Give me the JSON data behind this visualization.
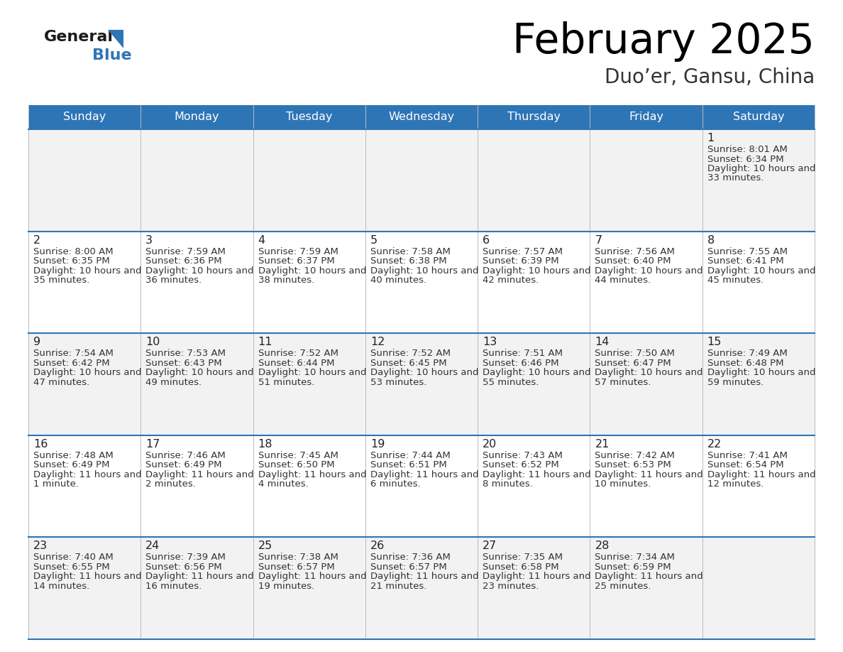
{
  "title": "February 2025",
  "subtitle": "Duo’er, Gansu, China",
  "header_bg": "#2e75b6",
  "header_text": "#ffffff",
  "row_bg_odd": "#f2f2f2",
  "row_bg_even": "#ffffff",
  "text_color": "#333333",
  "day_number_color": "#222222",
  "separator_color": "#2e75b6",
  "cell_border_color": "#cccccc",
  "day_headers": [
    "Sunday",
    "Monday",
    "Tuesday",
    "Wednesday",
    "Thursday",
    "Friday",
    "Saturday"
  ],
  "days": [
    {
      "day": 1,
      "col": 6,
      "row": 0,
      "sunrise": "8:01 AM",
      "sunset": "6:34 PM",
      "daylight": "10 hours and 33 minutes."
    },
    {
      "day": 2,
      "col": 0,
      "row": 1,
      "sunrise": "8:00 AM",
      "sunset": "6:35 PM",
      "daylight": "10 hours and 35 minutes."
    },
    {
      "day": 3,
      "col": 1,
      "row": 1,
      "sunrise": "7:59 AM",
      "sunset": "6:36 PM",
      "daylight": "10 hours and 36 minutes."
    },
    {
      "day": 4,
      "col": 2,
      "row": 1,
      "sunrise": "7:59 AM",
      "sunset": "6:37 PM",
      "daylight": "10 hours and 38 minutes."
    },
    {
      "day": 5,
      "col": 3,
      "row": 1,
      "sunrise": "7:58 AM",
      "sunset": "6:38 PM",
      "daylight": "10 hours and 40 minutes."
    },
    {
      "day": 6,
      "col": 4,
      "row": 1,
      "sunrise": "7:57 AM",
      "sunset": "6:39 PM",
      "daylight": "10 hours and 42 minutes."
    },
    {
      "day": 7,
      "col": 5,
      "row": 1,
      "sunrise": "7:56 AM",
      "sunset": "6:40 PM",
      "daylight": "10 hours and 44 minutes."
    },
    {
      "day": 8,
      "col": 6,
      "row": 1,
      "sunrise": "7:55 AM",
      "sunset": "6:41 PM",
      "daylight": "10 hours and 45 minutes."
    },
    {
      "day": 9,
      "col": 0,
      "row": 2,
      "sunrise": "7:54 AM",
      "sunset": "6:42 PM",
      "daylight": "10 hours and 47 minutes."
    },
    {
      "day": 10,
      "col": 1,
      "row": 2,
      "sunrise": "7:53 AM",
      "sunset": "6:43 PM",
      "daylight": "10 hours and 49 minutes."
    },
    {
      "day": 11,
      "col": 2,
      "row": 2,
      "sunrise": "7:52 AM",
      "sunset": "6:44 PM",
      "daylight": "10 hours and 51 minutes."
    },
    {
      "day": 12,
      "col": 3,
      "row": 2,
      "sunrise": "7:52 AM",
      "sunset": "6:45 PM",
      "daylight": "10 hours and 53 minutes."
    },
    {
      "day": 13,
      "col": 4,
      "row": 2,
      "sunrise": "7:51 AM",
      "sunset": "6:46 PM",
      "daylight": "10 hours and 55 minutes."
    },
    {
      "day": 14,
      "col": 5,
      "row": 2,
      "sunrise": "7:50 AM",
      "sunset": "6:47 PM",
      "daylight": "10 hours and 57 minutes."
    },
    {
      "day": 15,
      "col": 6,
      "row": 2,
      "sunrise": "7:49 AM",
      "sunset": "6:48 PM",
      "daylight": "10 hours and 59 minutes."
    },
    {
      "day": 16,
      "col": 0,
      "row": 3,
      "sunrise": "7:48 AM",
      "sunset": "6:49 PM",
      "daylight": "11 hours and 1 minute."
    },
    {
      "day": 17,
      "col": 1,
      "row": 3,
      "sunrise": "7:46 AM",
      "sunset": "6:49 PM",
      "daylight": "11 hours and 2 minutes."
    },
    {
      "day": 18,
      "col": 2,
      "row": 3,
      "sunrise": "7:45 AM",
      "sunset": "6:50 PM",
      "daylight": "11 hours and 4 minutes."
    },
    {
      "day": 19,
      "col": 3,
      "row": 3,
      "sunrise": "7:44 AM",
      "sunset": "6:51 PM",
      "daylight": "11 hours and 6 minutes."
    },
    {
      "day": 20,
      "col": 4,
      "row": 3,
      "sunrise": "7:43 AM",
      "sunset": "6:52 PM",
      "daylight": "11 hours and 8 minutes."
    },
    {
      "day": 21,
      "col": 5,
      "row": 3,
      "sunrise": "7:42 AM",
      "sunset": "6:53 PM",
      "daylight": "11 hours and 10 minutes."
    },
    {
      "day": 22,
      "col": 6,
      "row": 3,
      "sunrise": "7:41 AM",
      "sunset": "6:54 PM",
      "daylight": "11 hours and 12 minutes."
    },
    {
      "day": 23,
      "col": 0,
      "row": 4,
      "sunrise": "7:40 AM",
      "sunset": "6:55 PM",
      "daylight": "11 hours and 14 minutes."
    },
    {
      "day": 24,
      "col": 1,
      "row": 4,
      "sunrise": "7:39 AM",
      "sunset": "6:56 PM",
      "daylight": "11 hours and 16 minutes."
    },
    {
      "day": 25,
      "col": 2,
      "row": 4,
      "sunrise": "7:38 AM",
      "sunset": "6:57 PM",
      "daylight": "11 hours and 19 minutes."
    },
    {
      "day": 26,
      "col": 3,
      "row": 4,
      "sunrise": "7:36 AM",
      "sunset": "6:57 PM",
      "daylight": "11 hours and 21 minutes."
    },
    {
      "day": 27,
      "col": 4,
      "row": 4,
      "sunrise": "7:35 AM",
      "sunset": "6:58 PM",
      "daylight": "11 hours and 23 minutes."
    },
    {
      "day": 28,
      "col": 5,
      "row": 4,
      "sunrise": "7:34 AM",
      "sunset": "6:59 PM",
      "daylight": "11 hours and 25 minutes."
    }
  ],
  "figsize": [
    11.88,
    9.18
  ],
  "dpi": 100
}
